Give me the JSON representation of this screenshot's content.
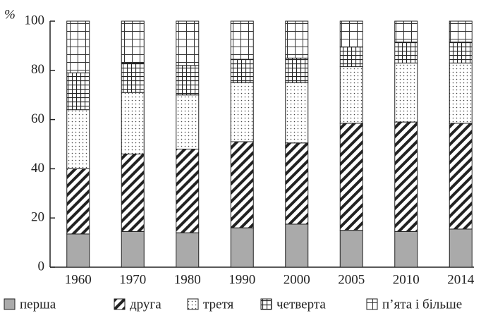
{
  "chart_data": {
    "type": "stacked-bar",
    "y_label": "%",
    "categories": [
      "1960",
      "1970",
      "1980",
      "1990",
      "2000",
      "2005",
      "2010",
      "2014"
    ],
    "series": [
      {
        "name": "перша",
        "color": "#aaaaaa",
        "pattern": "solid",
        "values": [
          13.5,
          14.5,
          14,
          16,
          17.5,
          15,
          14.5,
          15.5
        ]
      },
      {
        "name": "друга",
        "color": "#222222",
        "pattern": "hatch",
        "values": [
          26.5,
          31.5,
          34,
          35,
          33,
          43.5,
          44.5,
          43
        ]
      },
      {
        "name": "третя",
        "color": "#222222",
        "pattern": "dots",
        "values": [
          24,
          25,
          22,
          24,
          24.5,
          23,
          24,
          24.5
        ]
      },
      {
        "name": "четверта",
        "color": "#222222",
        "pattern": "grid",
        "values": [
          15,
          12,
          12,
          9.5,
          10,
          8,
          8.5,
          8.5
        ]
      },
      {
        "name": "п’ята і більше",
        "color": "#222222",
        "pattern": "grid-wide",
        "values": [
          21,
          17,
          18,
          15.5,
          15,
          10.5,
          8.5,
          8.5
        ]
      }
    ],
    "ylim": [
      0,
      100
    ],
    "yticks": [
      0,
      20,
      40,
      60,
      80,
      100
    ]
  }
}
